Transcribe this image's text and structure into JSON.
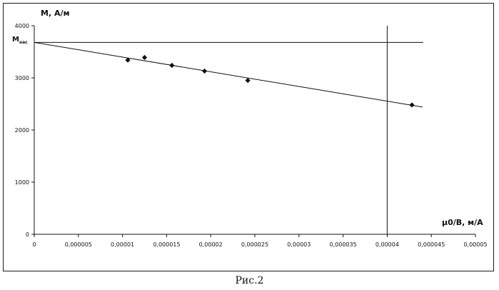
{
  "caption": "Рис.2",
  "chart_data": {
    "type": "scatter",
    "title": "",
    "ylabel": "M, А/м",
    "xlabel": "μ0/B, м/А",
    "xlim": [
      0,
      5e-05
    ],
    "ylim": [
      0,
      4000
    ],
    "x_ticks": [
      "0",
      "0,000005",
      "0,00001",
      "0,000015",
      "0,00002",
      "0,000025",
      "0,00003",
      "0,000035",
      "0,00004",
      "0,000045",
      "0,00005"
    ],
    "y_ticks": [
      "0",
      "1000",
      "2000",
      "3000",
      "4000"
    ],
    "points": [
      {
        "x": 1.06e-05,
        "y": 3340
      },
      {
        "x": 1.25e-05,
        "y": 3390
      },
      {
        "x": 1.56e-05,
        "y": 3240
      },
      {
        "x": 1.93e-05,
        "y": 3130
      },
      {
        "x": 2.42e-05,
        "y": 2950
      },
      {
        "x": 4.28e-05,
        "y": 2480
      }
    ],
    "trendline": {
      "x_start": 0,
      "y_start": 3680,
      "x_end": 4.4e-05,
      "y_end": 2440
    },
    "saturation_level": {
      "y": 3680,
      "label_main": "M",
      "label_sub": "нас"
    },
    "vertical_line": {
      "x": 4e-05
    },
    "grid": false,
    "legend": "none"
  }
}
